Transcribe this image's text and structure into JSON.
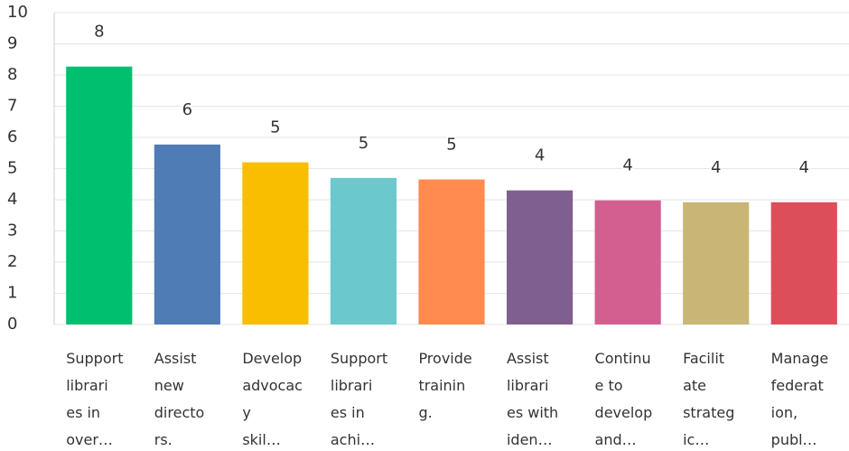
{
  "chart_data": {
    "type": "bar",
    "categories": [
      "Support\nlibrari\nes in\nover…",
      "Assist\nnew\ndirecto\nrs.",
      "Develop\nadvocac\ny\nskil…",
      "Support\nlibrari\nes in\nachi…",
      "Provide\ntrainin\ng.",
      "Assist\nlibrari\nes with\niden…",
      "Continu\ne to\ndevelop\nand…",
      "Facilit\nate\nstrateg\nic…",
      "Manage\nfederat\nion,\npubl…"
    ],
    "values": [
      8.27,
      5.77,
      5.2,
      4.7,
      4.65,
      4.3,
      3.98,
      3.92,
      3.92
    ],
    "value_labels": [
      "8",
      "6",
      "5",
      "5",
      "5",
      "4",
      "4",
      "4",
      "4"
    ],
    "colors": [
      "#00bf6f",
      "#507cb6",
      "#f9be00",
      "#6bc8cd",
      "#ff8b4f",
      "#7f5f8f",
      "#d25f90",
      "#c9b677",
      "#dd4e5b"
    ],
    "ylim": [
      0,
      10
    ],
    "yticks": [
      0,
      1,
      2,
      3,
      4,
      5,
      6,
      7,
      8,
      9,
      10
    ],
    "grid": true
  }
}
